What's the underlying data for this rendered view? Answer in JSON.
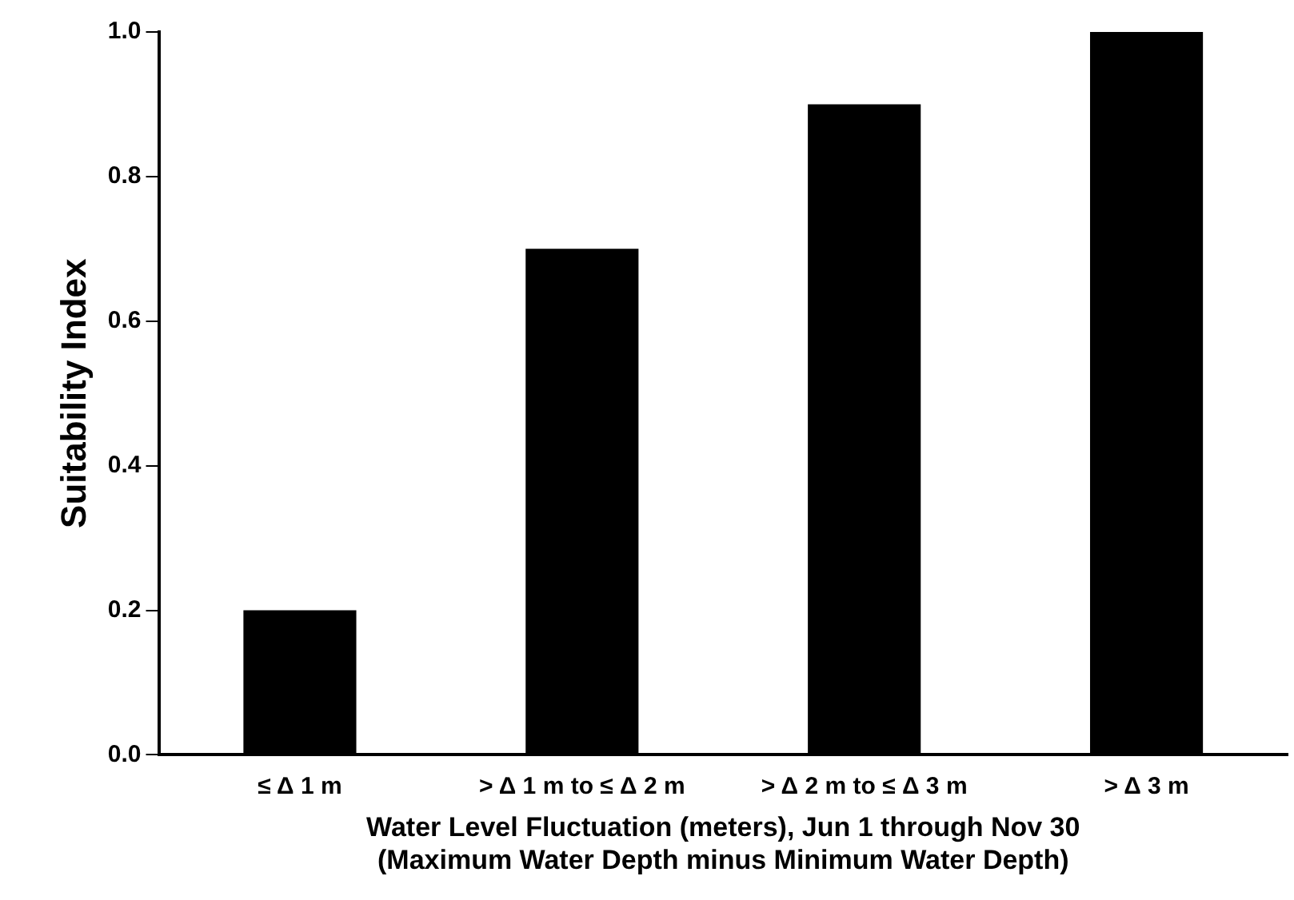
{
  "chart_data": {
    "type": "bar",
    "ylabel": "Suitability Index",
    "xlabel": "Water Level Fluctuation (meters), Jun 1 through Nov 30\n(Maximum Water Depth minus Minimum Water Depth)",
    "categories": [
      "≤ Δ 1 m",
      "> Δ 1 m to ≤ Δ 2 m",
      "> Δ 2 m to ≤ Δ 3 m",
      "> Δ 3 m"
    ],
    "values": [
      0.2,
      0.7,
      0.9,
      1.0
    ],
    "color": "#000000",
    "ylim": [
      0,
      1.0
    ],
    "yticks": [
      {
        "value": 0,
        "label": "0.0"
      },
      {
        "value": 0.2,
        "label": "0.2"
      },
      {
        "value": 0.4,
        "label": "0.4"
      },
      {
        "value": 0.6,
        "label": "0.6"
      },
      {
        "value": 0.8,
        "label": "0.8"
      },
      {
        "value": 1.0,
        "label": "1.0"
      }
    ],
    "grid": false,
    "legend": false
  }
}
